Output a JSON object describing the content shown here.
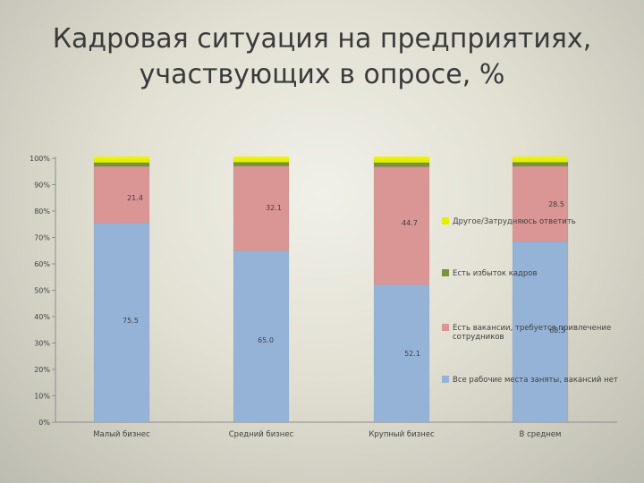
{
  "title_lines": [
    "Кадровая ситуация на предприятиях,",
    "участвующих в опросе, %"
  ],
  "chart_data": {
    "type": "bar",
    "stacked": true,
    "categories": [
      "Малый бизнес",
      "Средний бизнес",
      "Крупный бизнес",
      "В среднем"
    ],
    "series": [
      {
        "name": "Все рабочие места заняты, вакансий нет",
        "values": [
          75.5,
          65.0,
          52.1,
          68.5
        ],
        "color": "#95b3d7"
      },
      {
        "name": "Есть вакансии, требуется привлечение сотрудников",
        "values": [
          21.4,
          32.1,
          44.7,
          28.5
        ],
        "color": "#d99694"
      },
      {
        "name": "Есть избыток кадров",
        "values": [
          1.5,
          1.4,
          1.6,
          1.5
        ],
        "color": "#77933c"
      },
      {
        "name": "Другое/Затрудняюсь ответить",
        "values": [
          1.6,
          1.5,
          1.6,
          1.5
        ],
        "color": "#e2f000"
      }
    ],
    "data_labels": [
      [
        "75.5",
        "65.0",
        "52.1",
        "68.5"
      ],
      [
        "21.4",
        "32.1",
        "44.7",
        "28.5"
      ]
    ],
    "ylim": [
      0,
      100
    ],
    "yticks": [
      "0%",
      "10%",
      "20%",
      "30%",
      "40%",
      "50%",
      "60%",
      "70%",
      "80%",
      "90%",
      "100%"
    ],
    "legend_position": "right",
    "grid": false
  }
}
